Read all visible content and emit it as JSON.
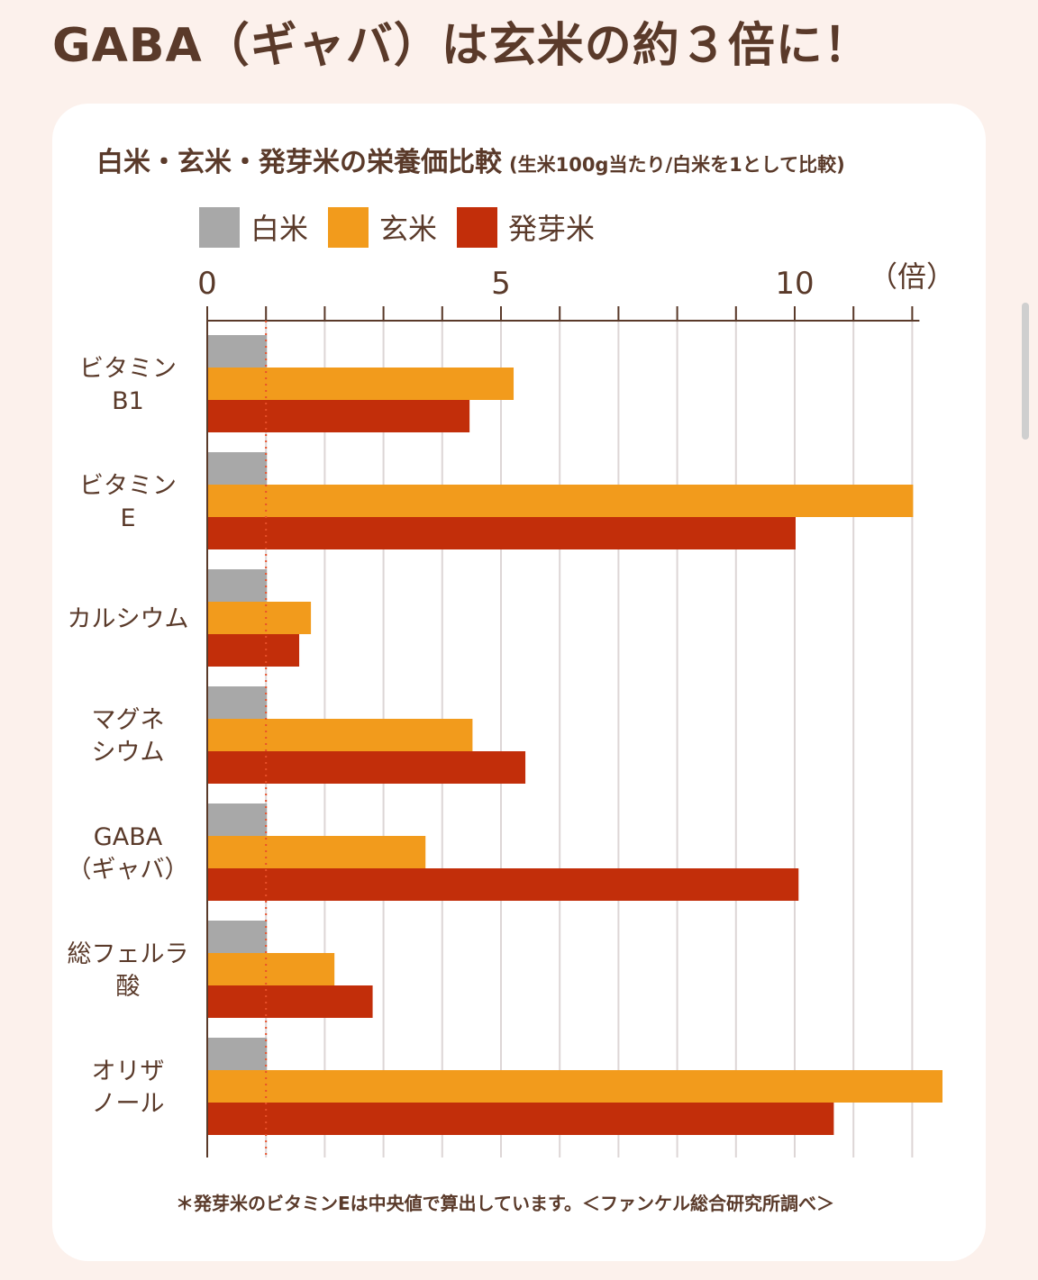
{
  "headline": "GABA（ギャバ）は玄米の約３倍に！",
  "chart_data": {
    "type": "bar",
    "orientation": "horizontal",
    "title": "白米・玄米・発芽米の栄養価比較",
    "subtitle": "(生米100g当たり/白米を1として比較)",
    "unit_label": "（倍）",
    "categories": [
      [
        "ビタミン",
        "B1"
      ],
      [
        "ビタミン",
        "E"
      ],
      [
        "カルシウム"
      ],
      [
        "マグネ",
        "シウム"
      ],
      [
        "GABA",
        "（ギャバ）"
      ],
      [
        "総フェルラ",
        "酸"
      ],
      [
        "オリザ",
        "ノール"
      ]
    ],
    "series": [
      {
        "name": "白米",
        "color": "#a8a8a8",
        "values": [
          1,
          1,
          1,
          1,
          1,
          1,
          1
        ]
      },
      {
        "name": "玄米",
        "color": "#f29b1c",
        "values": [
          5.2,
          12.0,
          1.75,
          4.5,
          3.7,
          2.15,
          12.5
        ]
      },
      {
        "name": "発芽米",
        "color": "#c22e0a",
        "values": [
          4.45,
          10.0,
          1.55,
          5.4,
          10.05,
          2.8,
          10.65
        ]
      }
    ],
    "xlim": [
      0,
      12
    ],
    "xticks": [
      0,
      5,
      10
    ],
    "reference_line": {
      "value": 1,
      "color": "#e8502a",
      "style": "dotted"
    },
    "grid": true,
    "legend_position": "top-left",
    "footnote": "＊発芽米のビタミンEは中央値で算出しています。＜ファンケル総合研究所調べ＞"
  }
}
